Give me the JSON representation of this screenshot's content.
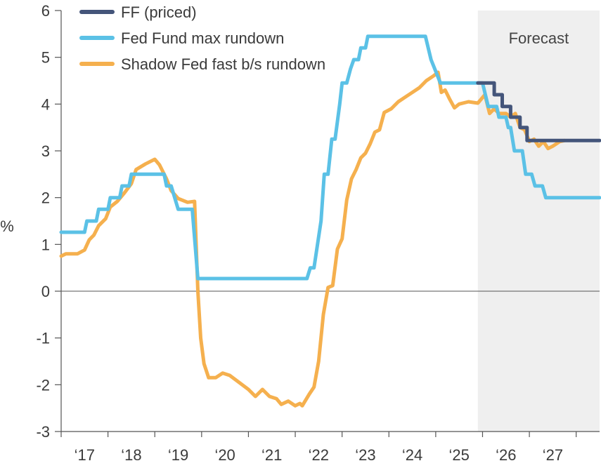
{
  "chart_data": {
    "type": "line",
    "ylabel": "%",
    "ylim": [
      -3,
      6
    ],
    "yticks": [
      "6",
      "5",
      "4",
      "3",
      "2",
      "1",
      "0",
      "-1",
      "-2",
      "-3"
    ],
    "xlim": [
      2016.5,
      2028.0
    ],
    "xticks": [
      {
        "x": 2017.0,
        "label": "‘17"
      },
      {
        "x": 2018.0,
        "label": "‘18"
      },
      {
        "x": 2019.0,
        "label": "‘19"
      },
      {
        "x": 2020.0,
        "label": "‘20"
      },
      {
        "x": 2021.0,
        "label": "‘21"
      },
      {
        "x": 2022.0,
        "label": "‘22"
      },
      {
        "x": 2023.0,
        "label": "‘23"
      },
      {
        "x": 2024.0,
        "label": "‘24"
      },
      {
        "x": 2025.0,
        "label": "‘25"
      },
      {
        "x": 2026.0,
        "label": "‘26"
      },
      {
        "x": 2027.0,
        "label": "‘27"
      }
    ],
    "forecast_region": {
      "start": 2025.4,
      "end": 2028.0,
      "label": "Forecast",
      "color": "#efefef"
    },
    "legend_position": "top-left",
    "grid": false,
    "series": [
      {
        "name": "FF (priced)",
        "color": "#44557a",
        "points": [
          [
            2025.4,
            4.45
          ],
          [
            2025.75,
            4.45
          ],
          [
            2025.75,
            4.2
          ],
          [
            2025.92,
            4.2
          ],
          [
            2025.92,
            3.95
          ],
          [
            2026.1,
            3.95
          ],
          [
            2026.1,
            3.72
          ],
          [
            2026.3,
            3.72
          ],
          [
            2026.3,
            3.5
          ],
          [
            2026.45,
            3.5
          ],
          [
            2026.45,
            3.22
          ],
          [
            2026.6,
            3.22
          ],
          [
            2028.0,
            3.22
          ]
        ]
      },
      {
        "name": "Fed Fund max rundown",
        "color": "#5bc1e6",
        "points": [
          [
            2016.5,
            1.26
          ],
          [
            2017.0,
            1.26
          ],
          [
            2017.05,
            1.5
          ],
          [
            2017.25,
            1.5
          ],
          [
            2017.3,
            1.75
          ],
          [
            2017.5,
            1.75
          ],
          [
            2017.55,
            2.0
          ],
          [
            2017.75,
            2.0
          ],
          [
            2017.8,
            2.25
          ],
          [
            2017.95,
            2.25
          ],
          [
            2018.0,
            2.5
          ],
          [
            2018.7,
            2.5
          ],
          [
            2018.75,
            2.25
          ],
          [
            2018.85,
            2.25
          ],
          [
            2019.0,
            1.75
          ],
          [
            2019.3,
            1.75
          ],
          [
            2019.42,
            0.27
          ],
          [
            2021.75,
            0.27
          ],
          [
            2021.82,
            0.5
          ],
          [
            2021.9,
            0.5
          ],
          [
            2022.05,
            1.5
          ],
          [
            2022.12,
            2.5
          ],
          [
            2022.2,
            2.5
          ],
          [
            2022.28,
            3.25
          ],
          [
            2022.35,
            3.25
          ],
          [
            2022.45,
            4.0
          ],
          [
            2022.5,
            4.45
          ],
          [
            2022.6,
            4.45
          ],
          [
            2022.68,
            4.75
          ],
          [
            2022.75,
            4.95
          ],
          [
            2022.85,
            4.95
          ],
          [
            2022.9,
            5.2
          ],
          [
            2023.0,
            5.2
          ],
          [
            2023.05,
            5.45
          ],
          [
            2024.28,
            5.45
          ],
          [
            2024.4,
            4.95
          ],
          [
            2024.5,
            4.7
          ],
          [
            2024.6,
            4.45
          ],
          [
            2025.5,
            4.45
          ],
          [
            2025.62,
            3.95
          ],
          [
            2025.8,
            3.95
          ],
          [
            2025.85,
            3.72
          ],
          [
            2026.0,
            3.72
          ],
          [
            2026.05,
            3.5
          ],
          [
            2026.1,
            3.5
          ],
          [
            2026.18,
            3.0
          ],
          [
            2026.35,
            3.0
          ],
          [
            2026.42,
            2.5
          ],
          [
            2026.55,
            2.5
          ],
          [
            2026.62,
            2.25
          ],
          [
            2026.78,
            2.25
          ],
          [
            2026.85,
            2.0
          ],
          [
            2028.0,
            2.0
          ]
        ]
      },
      {
        "name": "Shadow Fed fast b/s rundown",
        "color": "#f5b04e",
        "points": [
          [
            2016.5,
            0.75
          ],
          [
            2016.6,
            0.8
          ],
          [
            2016.85,
            0.8
          ],
          [
            2017.0,
            0.88
          ],
          [
            2017.1,
            1.1
          ],
          [
            2017.2,
            1.2
          ],
          [
            2017.3,
            1.4
          ],
          [
            2017.45,
            1.55
          ],
          [
            2017.55,
            1.8
          ],
          [
            2017.7,
            1.92
          ],
          [
            2017.85,
            2.1
          ],
          [
            2018.0,
            2.3
          ],
          [
            2018.1,
            2.6
          ],
          [
            2018.3,
            2.72
          ],
          [
            2018.5,
            2.82
          ],
          [
            2018.6,
            2.7
          ],
          [
            2018.75,
            2.4
          ],
          [
            2018.85,
            2.15
          ],
          [
            2019.0,
            1.98
          ],
          [
            2019.2,
            1.9
          ],
          [
            2019.35,
            1.92
          ],
          [
            2019.42,
            0.0
          ],
          [
            2019.48,
            -1.0
          ],
          [
            2019.55,
            -1.55
          ],
          [
            2019.65,
            -1.85
          ],
          [
            2019.8,
            -1.85
          ],
          [
            2019.95,
            -1.75
          ],
          [
            2020.1,
            -1.8
          ],
          [
            2020.3,
            -1.95
          ],
          [
            2020.5,
            -2.1
          ],
          [
            2020.65,
            -2.25
          ],
          [
            2020.8,
            -2.1
          ],
          [
            2020.95,
            -2.25
          ],
          [
            2021.1,
            -2.3
          ],
          [
            2021.2,
            -2.42
          ],
          [
            2021.35,
            -2.35
          ],
          [
            2021.5,
            -2.45
          ],
          [
            2021.6,
            -2.4
          ],
          [
            2021.65,
            -2.45
          ],
          [
            2021.8,
            -2.2
          ],
          [
            2021.9,
            -2.05
          ],
          [
            2022.0,
            -1.5
          ],
          [
            2022.1,
            -0.5
          ],
          [
            2022.2,
            0.08
          ],
          [
            2022.3,
            0.12
          ],
          [
            2022.4,
            0.9
          ],
          [
            2022.5,
            1.12
          ],
          [
            2022.6,
            1.95
          ],
          [
            2022.7,
            2.4
          ],
          [
            2022.8,
            2.6
          ],
          [
            2022.9,
            2.85
          ],
          [
            2023.0,
            2.95
          ],
          [
            2023.1,
            3.15
          ],
          [
            2023.2,
            3.4
          ],
          [
            2023.3,
            3.45
          ],
          [
            2023.4,
            3.82
          ],
          [
            2023.55,
            3.9
          ],
          [
            2023.7,
            4.05
          ],
          [
            2023.85,
            4.15
          ],
          [
            2024.0,
            4.25
          ],
          [
            2024.15,
            4.35
          ],
          [
            2024.3,
            4.5
          ],
          [
            2024.45,
            4.6
          ],
          [
            2024.55,
            4.68
          ],
          [
            2024.62,
            4.25
          ],
          [
            2024.7,
            4.3
          ],
          [
            2024.8,
            4.1
          ],
          [
            2024.9,
            3.92
          ],
          [
            2025.0,
            4.0
          ],
          [
            2025.2,
            4.05
          ],
          [
            2025.4,
            4.02
          ],
          [
            2025.55,
            4.2
          ],
          [
            2025.65,
            3.8
          ],
          [
            2025.75,
            3.9
          ],
          [
            2025.85,
            3.8
          ],
          [
            2026.0,
            3.8
          ],
          [
            2026.1,
            3.72
          ],
          [
            2026.2,
            3.8
          ],
          [
            2026.3,
            3.5
          ],
          [
            2026.4,
            3.45
          ],
          [
            2026.5,
            3.2
          ],
          [
            2026.6,
            3.25
          ],
          [
            2026.7,
            3.1
          ],
          [
            2026.8,
            3.2
          ],
          [
            2026.9,
            3.05
          ],
          [
            2027.0,
            3.1
          ],
          [
            2027.15,
            3.2
          ],
          [
            2027.25,
            3.22
          ]
        ]
      }
    ]
  }
}
